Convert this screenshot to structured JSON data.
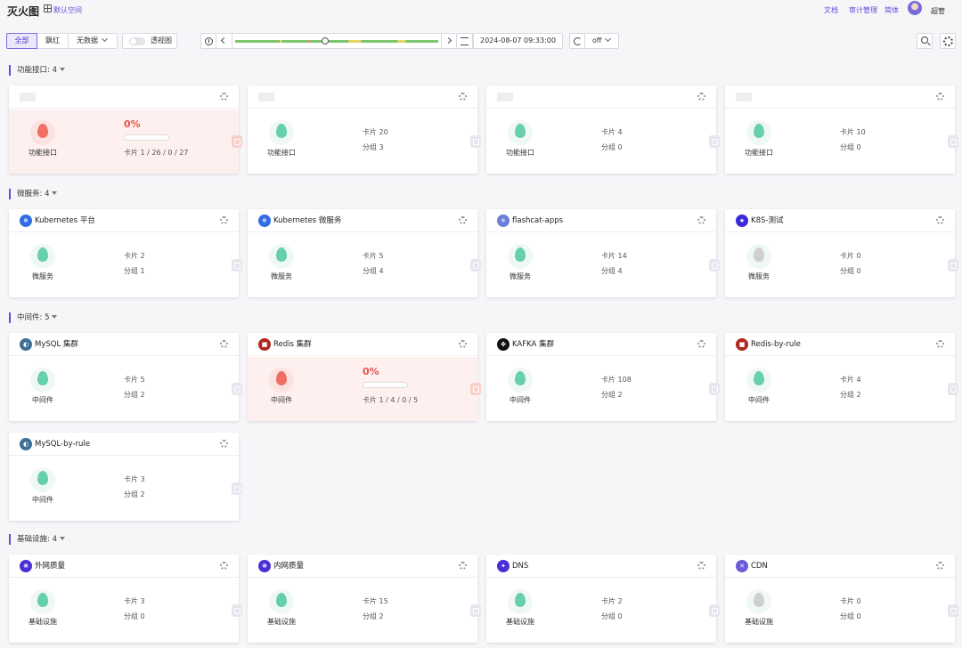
{
  "header": {
    "brand": "灭火图",
    "space": "默认空间",
    "links": [
      "文档",
      "审计管理",
      "简体"
    ],
    "user": "超管"
  },
  "toolbar": {
    "filters": [
      "全部",
      "飘红",
      "无数据"
    ],
    "perspective": "透视图",
    "time": "2024-08-07 09:33:00",
    "refresh": "off"
  },
  "colors": {
    "accent": "#5b4fd6",
    "healthy": "#66cfad",
    "alert": "#ef6f64",
    "no_data": "#cfcfcf"
  },
  "sections": [
    {
      "title": "功能接口: 4",
      "cards": [
        {
          "title": "",
          "logo": "",
          "category": "功能接口",
          "alert": true,
          "percent": "0%",
          "counts": "卡片 1 / 26 / 0 / 27"
        },
        {
          "title": "",
          "logo": "",
          "category": "功能接口",
          "cards": "卡片 20",
          "groups": "分组 3"
        },
        {
          "title": "",
          "logo": "",
          "category": "功能接口",
          "cards": "卡片 4",
          "groups": "分组 0"
        },
        {
          "title": "",
          "logo": "",
          "category": "功能接口",
          "cards": "卡片 10",
          "groups": "分组 0"
        }
      ]
    },
    {
      "title": "微服务: 4",
      "cards": [
        {
          "title": "Kubernetes 平台",
          "logo": "kubernetes-logo",
          "category": "微服务",
          "cards": "卡片 2",
          "groups": "分组 1"
        },
        {
          "title": "Kubernetes 微服务",
          "logo": "kubernetes-logo",
          "category": "微服务",
          "cards": "卡片 5",
          "groups": "分组 4"
        },
        {
          "title": "flashcat-apps",
          "logo": "flashcat-logo",
          "category": "微服务",
          "cards": "卡片 14",
          "groups": "分组 4"
        },
        {
          "title": "K8S-测试",
          "logo": "star-logo",
          "category": "微服务",
          "cards": "卡片 0",
          "groups": "分组 0",
          "no_data": true
        }
      ]
    },
    {
      "title": "中间件: 5",
      "cards": [
        {
          "title": "MySQL 集群",
          "logo": "mysql-logo",
          "category": "中间件",
          "cards": "卡片 5",
          "groups": "分组 2"
        },
        {
          "title": "Redis 集群",
          "logo": "redis-logo",
          "category": "中间件",
          "alert": true,
          "percent": "0%",
          "counts": "卡片 1 / 4 / 0 / 5"
        },
        {
          "title": "KAFKA 集群",
          "logo": "kafka-logo",
          "category": "中间件",
          "cards": "卡片 108",
          "groups": "分组 2"
        },
        {
          "title": "Redis-by-rule",
          "logo": "redis-logo",
          "category": "中间件",
          "cards": "卡片 4",
          "groups": "分组 2"
        },
        {
          "title": "MySQL-by-rule",
          "logo": "mysql-logo",
          "category": "中间件",
          "cards": "卡片 3",
          "groups": "分组 2"
        }
      ]
    },
    {
      "title": "基础设施: 4",
      "cards": [
        {
          "title": "外网质量",
          "logo": "network-logo",
          "category": "基础设施",
          "cards": "卡片 3",
          "groups": "分组 0"
        },
        {
          "title": "内网质量",
          "logo": "network-logo",
          "category": "基础设施",
          "cards": "卡片 15",
          "groups": "分组 2"
        },
        {
          "title": "DNS",
          "logo": "dns-logo",
          "category": "基础设施",
          "cards": "卡片 2",
          "groups": "分组 0"
        },
        {
          "title": "CDN",
          "logo": "cdn-logo",
          "category": "基础设施",
          "cards": "卡片 0",
          "groups": "分组 0",
          "no_data": true
        }
      ]
    }
  ]
}
